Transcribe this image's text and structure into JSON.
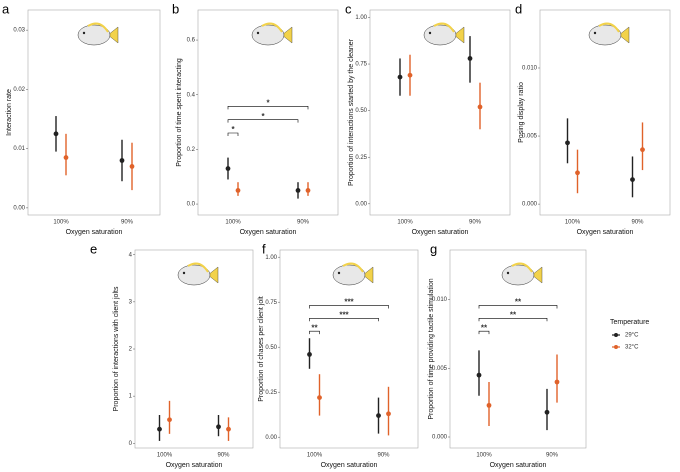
{
  "chart_data": [
    {
      "type": "errorpoint",
      "panel": "a",
      "ylabel": "Interaction rate",
      "xlabel": "Oxygen saturation",
      "categories": [
        "100%",
        "90%"
      ],
      "ylim": [
        -0.0012,
        0.0334
      ],
      "yticks": [
        {
          "value": 0,
          "label": "0.00"
        },
        {
          "value": 0.01,
          "label": "0.01"
        },
        {
          "value": 0.02,
          "label": "0.02"
        },
        {
          "value": 0.03,
          "label": "0.03"
        }
      ],
      "series": [
        {
          "name": "29°C",
          "color": "#222222",
          "values": [
            0.0125,
            0.008
          ],
          "lows": [
            0.0095,
            0.0045
          ],
          "highs": [
            0.0155,
            0.0115
          ]
        },
        {
          "name": "32°C",
          "color": "#e0622a",
          "values": [
            0.0085,
            0.007
          ],
          "lows": [
            0.0055,
            0.003
          ],
          "highs": [
            0.0125,
            0.011
          ]
        }
      ]
    },
    {
      "type": "errorpoint",
      "panel": "b",
      "ylabel": "Proportion of time spent interacting",
      "xlabel": "Oxygen saturation",
      "categories": [
        "100%",
        "90%"
      ],
      "ylim": [
        -0.04,
        0.71
      ],
      "yticks": [
        {
          "value": 0,
          "label": "0.0"
        },
        0.2,
        0.4,
        0.6
      ],
      "series": [
        {
          "name": "29°C",
          "color": "#222222",
          "values": [
            0.13,
            0.05
          ],
          "lows": [
            0.09,
            0.02
          ],
          "highs": [
            0.17,
            0.08
          ]
        },
        {
          "name": "32°C",
          "color": "#e0622a",
          "values": [
            0.05,
            0.05
          ],
          "lows": [
            0.03,
            0.03
          ],
          "highs": [
            0.08,
            0.08
          ]
        }
      ],
      "annotations": [
        "*",
        "*",
        "*"
      ]
    },
    {
      "type": "errorpoint",
      "panel": "c",
      "ylabel": "Proportion of interactions started by the cleaner",
      "xlabel": "Oxygen saturation",
      "categories": [
        "100%",
        "90%"
      ],
      "ylim": [
        -0.06,
        1.04
      ],
      "yticks": [
        {
          "value": 0,
          "label": "0.00"
        },
        0.25,
        {
          "value": 0.5,
          "label": "0.50"
        },
        0.75,
        {
          "value": 1,
          "label": "1.00"
        }
      ],
      "series": [
        {
          "name": "29°C",
          "color": "#222222",
          "values": [
            0.68,
            0.78
          ],
          "lows": [
            0.58,
            0.65
          ],
          "highs": [
            0.78,
            0.9
          ]
        },
        {
          "name": "32°C",
          "color": "#e0622a",
          "values": [
            0.69,
            0.52
          ],
          "lows": [
            0.58,
            0.4
          ],
          "highs": [
            0.8,
            0.65
          ]
        }
      ]
    },
    {
      "type": "errorpoint",
      "panel": "d",
      "ylabel": "Posing display ratio",
      "xlabel": "Oxygen saturation",
      "categories": [
        "100%",
        "90%"
      ],
      "ylim": [
        -0.0008,
        0.01426
      ],
      "yticks": [
        {
          "value": 0,
          "label": "0.000"
        },
        0.005,
        {
          "value": 0.01,
          "label": "0.010"
        }
      ],
      "series": [
        {
          "name": "29°C",
          "color": "#222222",
          "values": [
            0.0045,
            0.0018
          ],
          "lows": [
            0.003,
            0.0005
          ],
          "highs": [
            0.0063,
            0.0035
          ]
        },
        {
          "name": "32°C",
          "color": "#e0622a",
          "values": [
            0.0023,
            0.004
          ],
          "lows": [
            0.0008,
            0.0025
          ],
          "highs": [
            0.004,
            0.006
          ]
        }
      ]
    },
    {
      "type": "errorpoint",
      "panel": "e",
      "ylabel": "Proportion of interactions with client jolts",
      "xlabel": "Oxygen saturation",
      "categories": [
        "100%",
        "90%"
      ],
      "ylim": [
        -0.1,
        4.1
      ],
      "yticks": [
        0,
        1,
        2,
        3,
        4
      ],
      "series": [
        {
          "name": "29°C",
          "color": "#222222",
          "values": [
            0.3,
            0.35
          ],
          "lows": [
            0.05,
            0.15
          ],
          "highs": [
            0.6,
            0.6
          ]
        },
        {
          "name": "32°C",
          "color": "#e0622a",
          "values": [
            0.5,
            0.3
          ],
          "lows": [
            0.2,
            0.05
          ],
          "highs": [
            0.9,
            0.55
          ]
        }
      ]
    },
    {
      "type": "errorpoint",
      "panel": "f",
      "ylabel": "Proportion of chases per client jolt",
      "xlabel": "Oxygen saturation",
      "categories": [
        "100%",
        "90%"
      ],
      "ylim": [
        -0.06,
        1.04
      ],
      "yticks": [
        {
          "value": 0,
          "label": "0.00"
        },
        0.25,
        {
          "value": 0.5,
          "label": "0.50"
        },
        0.75,
        {
          "value": 1,
          "label": "1.00"
        }
      ],
      "series": [
        {
          "name": "29°C",
          "color": "#222222",
          "values": [
            0.46,
            0.12
          ],
          "lows": [
            0.38,
            0.02
          ],
          "highs": [
            0.55,
            0.22
          ]
        },
        {
          "name": "32°C",
          "color": "#e0622a",
          "values": [
            0.22,
            0.13
          ],
          "lows": [
            0.12,
            0.01
          ],
          "highs": [
            0.35,
            0.28
          ]
        }
      ],
      "annotations": [
        "**",
        "***",
        "***"
      ]
    },
    {
      "type": "errorpoint",
      "panel": "g",
      "ylabel": "Proportion of time providing tactile stimulation",
      "xlabel": "Oxygen saturation",
      "categories": [
        "100%",
        "90%"
      ],
      "ylim": [
        -0.0008,
        0.0136
      ],
      "yticks": [
        {
          "value": 0,
          "label": "0.000"
        },
        0.005,
        {
          "value": 0.01,
          "label": "0.010"
        }
      ],
      "series": [
        {
          "name": "29°C",
          "color": "#222222",
          "values": [
            0.0045,
            0.0018
          ],
          "lows": [
            0.003,
            0.0005
          ],
          "highs": [
            0.0063,
            0.0035
          ]
        },
        {
          "name": "32°C",
          "color": "#e0622a",
          "values": [
            0.0023,
            0.004
          ],
          "lows": [
            0.0008,
            0.0025
          ],
          "highs": [
            0.004,
            0.006
          ]
        }
      ],
      "annotations": [
        "**",
        "**",
        "**"
      ],
      "legend_title": "Temperature"
    }
  ]
}
